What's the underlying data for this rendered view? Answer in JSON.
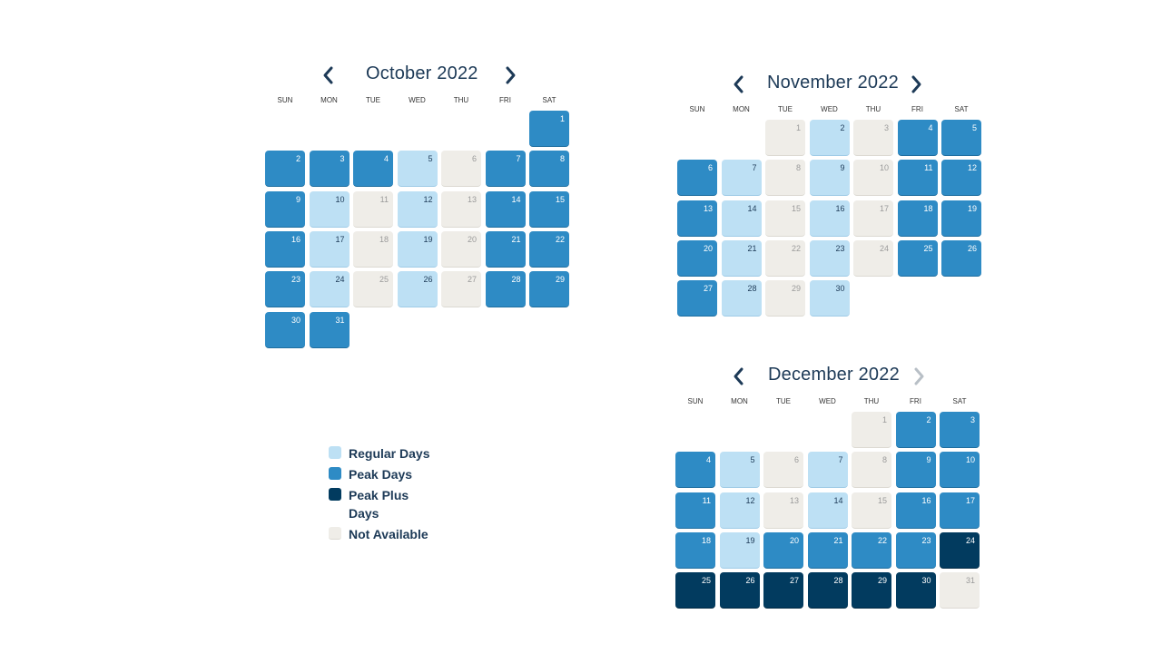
{
  "dow": [
    "SUN",
    "MON",
    "TUE",
    "WED",
    "THU",
    "FRI",
    "SAT"
  ],
  "colors": {
    "regular": "#bde0f4",
    "peak": "#2e8bc5",
    "peakplus": "#023b5f",
    "na": "#efede8",
    "title": "#1d3a57"
  },
  "calendars": [
    {
      "title": "October 2022",
      "prev_icon": "chevron-left-icon",
      "next_icon": "chevron-right-icon",
      "next_enabled": true,
      "start_weekday": 6,
      "days": [
        "peak",
        "peak",
        "peak",
        "peak",
        "regular",
        "na",
        "peak",
        "peak",
        "peak",
        "regular",
        "na",
        "regular",
        "na",
        "peak",
        "peak",
        "peak",
        "regular",
        "na",
        "regular",
        "na",
        "peak",
        "peak",
        "peak",
        "regular",
        "na",
        "regular",
        "na",
        "peak",
        "peak",
        "peak",
        "peak"
      ]
    },
    {
      "title": "November 2022",
      "prev_icon": "chevron-left-icon",
      "next_icon": "chevron-right-icon",
      "next_enabled": true,
      "start_weekday": 2,
      "days": [
        "na",
        "regular",
        "na",
        "peak",
        "peak",
        "peak",
        "regular",
        "na",
        "regular",
        "na",
        "peak",
        "peak",
        "peak",
        "regular",
        "na",
        "regular",
        "na",
        "peak",
        "peak",
        "peak",
        "regular",
        "na",
        "regular",
        "na",
        "peak",
        "peak",
        "peak",
        "regular",
        "na",
        "regular"
      ]
    },
    {
      "title": "December 2022",
      "prev_icon": "chevron-left-icon",
      "next_icon": "chevron-right-icon",
      "next_enabled": false,
      "start_weekday": 4,
      "days": [
        "na",
        "peak",
        "peak",
        "peak",
        "regular",
        "na",
        "regular",
        "na",
        "peak",
        "peak",
        "peak",
        "regular",
        "na",
        "regular",
        "na",
        "peak",
        "peak",
        "peak",
        "regular",
        "peak",
        "peak",
        "peak",
        "peak",
        "peakplus",
        "peakplus",
        "peakplus",
        "peakplus",
        "peakplus",
        "peakplus",
        "peakplus",
        "na"
      ]
    }
  ],
  "legend": [
    {
      "label": "Regular Days",
      "status": "regular"
    },
    {
      "label": "Peak Days",
      "status": "peak"
    },
    {
      "label": "Peak Plus Days",
      "status": "peakplus"
    },
    {
      "label": "Not Available",
      "status": "na"
    }
  ]
}
